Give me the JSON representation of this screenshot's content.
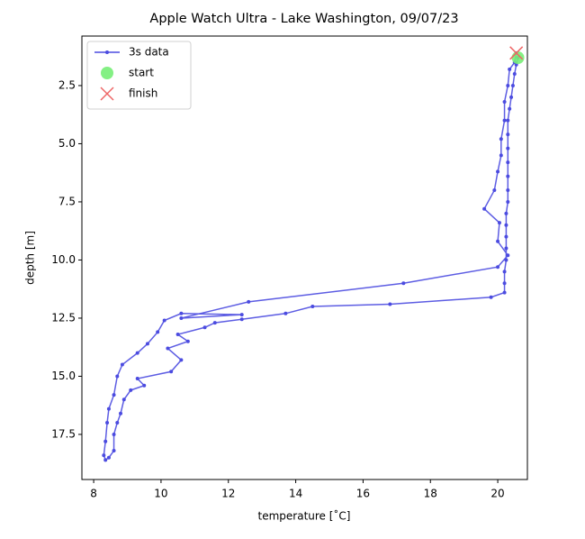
{
  "chart_data": {
    "type": "line",
    "title": "Apple Watch Ultra - Lake Washington, 09/07/23",
    "x_label": "temperature [˚C]",
    "y_label": "depth [m]",
    "xlim": [
      7.65,
      20.88
    ],
    "ylim": [
      19.44,
      0.37
    ],
    "xticks": [
      8,
      10,
      12,
      14,
      16,
      18,
      20
    ],
    "yticks": [
      {
        "value": 2.5,
        "label": "2.5"
      },
      {
        "value": 5.0,
        "label": "5.0"
      },
      {
        "value": 7.5,
        "label": "7.5"
      },
      {
        "value": 10.0,
        "label": "10.0"
      },
      {
        "value": 12.5,
        "label": "12.5"
      },
      {
        "value": 15.0,
        "label": "15.0"
      },
      {
        "value": 17.5,
        "label": "17.5"
      }
    ],
    "legend": "upper left",
    "series": [
      {
        "name": "3s data",
        "color": "#4b4be0",
        "style": "line",
        "x": [
          20.6,
          20.55,
          20.5,
          20.45,
          20.4,
          20.35,
          20.3,
          20.3,
          20.3,
          20.3,
          20.3,
          20.3,
          20.3,
          20.25,
          20.25,
          20.25,
          20.25,
          20.25,
          20.2,
          20.2,
          20.2,
          19.8,
          16.8,
          14.5,
          13.7,
          12.4,
          11.6,
          11.3,
          10.5,
          10.8,
          10.2,
          10.6,
          10.3,
          9.3,
          9.5,
          9.1,
          8.9,
          8.8,
          8.7,
          8.6,
          8.6,
          8.45,
          8.35,
          8.3,
          8.35,
          8.4,
          8.45,
          8.6,
          8.7,
          8.85,
          9.3,
          9.6,
          9.9,
          10.1,
          10.6,
          12.4,
          10.6,
          12.6,
          17.2,
          20.0,
          20.3,
          20.0,
          20.05,
          19.6,
          19.9,
          20.0,
          20.1,
          20.1,
          20.2,
          20.2,
          20.3,
          20.35,
          20.5,
          20.55
        ],
        "values": [
          1.3,
          1.6,
          2.0,
          2.5,
          3.0,
          3.5,
          4.0,
          4.6,
          5.2,
          5.8,
          6.4,
          7.0,
          7.5,
          8.0,
          8.5,
          9.0,
          9.5,
          10.0,
          10.5,
          11.0,
          11.4,
          11.6,
          11.9,
          12.0,
          12.3,
          12.55,
          12.7,
          12.9,
          13.2,
          13.5,
          13.8,
          14.3,
          14.8,
          15.1,
          15.4,
          15.6,
          16.0,
          16.6,
          17.0,
          17.5,
          18.2,
          18.5,
          18.6,
          18.4,
          17.8,
          17.0,
          16.4,
          15.8,
          15.0,
          14.5,
          14.0,
          13.6,
          13.1,
          12.6,
          12.3,
          12.35,
          12.5,
          11.8,
          11.0,
          10.3,
          9.8,
          9.2,
          8.4,
          7.8,
          7.0,
          6.2,
          5.5,
          4.8,
          4.0,
          3.2,
          2.5,
          1.8,
          1.5,
          1.1
        ]
      },
      {
        "name": "start",
        "color": "#77ee77",
        "style": "circle",
        "x": [
          20.6
        ],
        "values": [
          1.3
        ]
      },
      {
        "name": "finish",
        "color": "#ee6666",
        "style": "cross",
        "x": [
          20.55
        ],
        "values": [
          1.1
        ]
      }
    ]
  }
}
